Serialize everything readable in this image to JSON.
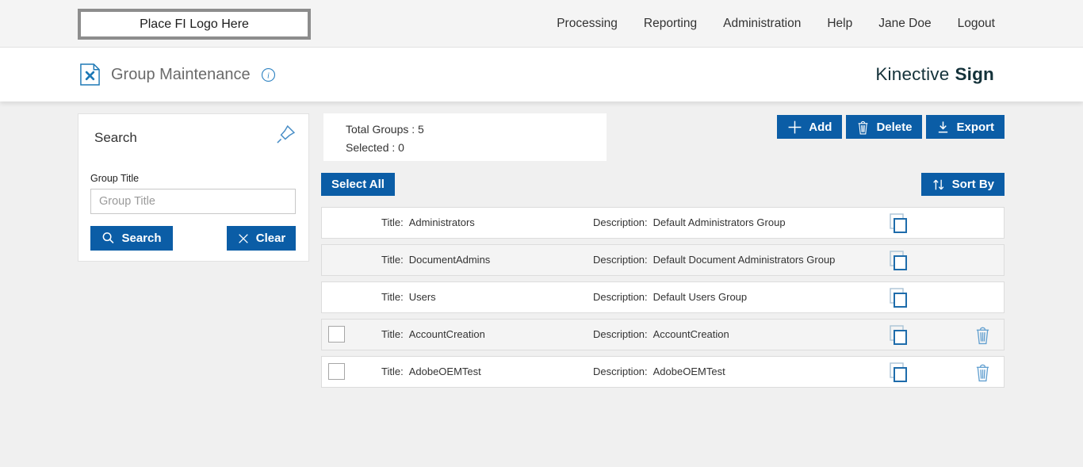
{
  "top_nav": {
    "logo_placeholder": "Place FI Logo Here",
    "items": [
      "Processing",
      "Reporting",
      "Administration",
      "Help",
      "Jane Doe",
      "Logout"
    ]
  },
  "header": {
    "title": "Group Maintenance",
    "brand_name": "Kinective",
    "brand_product": "Sign"
  },
  "search_panel": {
    "title": "Search",
    "field_label": "Group Title",
    "field_placeholder": "Group Title",
    "field_value": "",
    "search_button": "Search",
    "clear_button": "Clear"
  },
  "summary": {
    "total_groups_label": "Total Groups :",
    "total_groups_value": "5",
    "selected_label": "Selected :",
    "selected_value": "0"
  },
  "toolbar": {
    "add_label": "Add",
    "delete_label": "Delete",
    "export_label": "Export",
    "select_all_label": "Select All",
    "sort_by_label": "Sort By"
  },
  "groups": {
    "title_label": "Title:",
    "description_label": "Description:",
    "rows": [
      {
        "title": "Administrators",
        "description": "Default Administrators Group",
        "has_checkbox": false,
        "deletable": false
      },
      {
        "title": "DocumentAdmins",
        "description": "Default Document Administrators Group",
        "has_checkbox": false,
        "deletable": false
      },
      {
        "title": "Users",
        "description": "Default Users Group",
        "has_checkbox": false,
        "deletable": false
      },
      {
        "title": "AccountCreation",
        "description": "AccountCreation",
        "has_checkbox": true,
        "deletable": true
      },
      {
        "title": "AdobeOEMTest",
        "description": "AdobeOEMTest",
        "has_checkbox": true,
        "deletable": true
      }
    ]
  },
  "icons": {
    "page_tool": "document-with-wrench",
    "info": "circled-italic-i",
    "pin": "pushpin-outline",
    "search": "magnifier",
    "clear": "x-mark",
    "add": "plus",
    "delete": "trash-can",
    "export": "download-arrow",
    "sort": "up-down-arrows",
    "copy": "overlapping-squares",
    "row_delete": "trash-can"
  },
  "colors": {
    "primary_blue": "#0b5da6",
    "brand_teal": "#14323a",
    "icon_blue": "#1e6cab",
    "icon_light_blue": "#63a0d0",
    "row_alt_bg": "#f4f4f4",
    "topbar_bg": "#f4f4f4"
  }
}
